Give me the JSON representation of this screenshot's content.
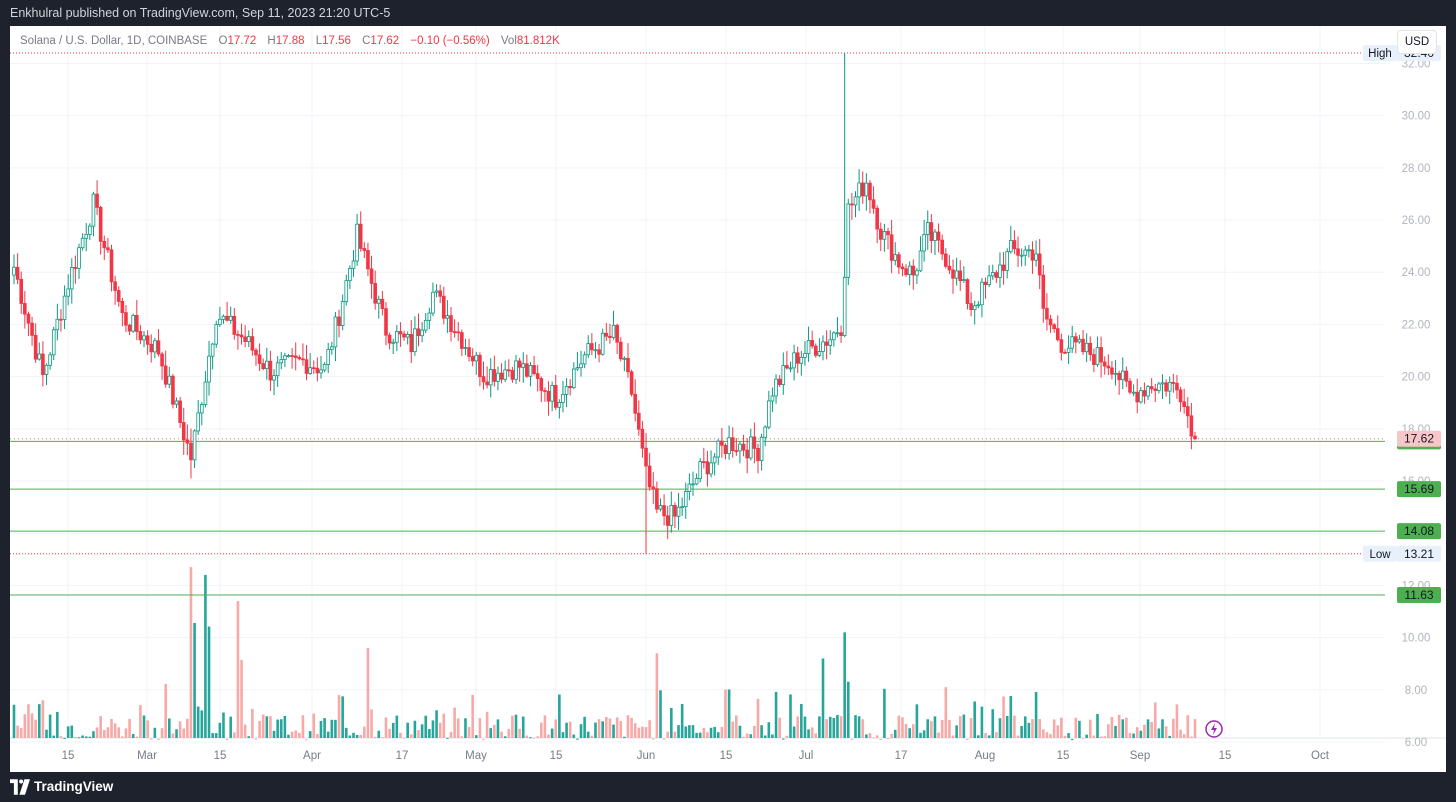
{
  "header": {
    "published_text": "Enkhulral published on TradingView.com, Sep 11, 2023 21:20 UTC-5"
  },
  "legend": {
    "symbol": "Solana / U.S. Dollar, 1D, COINBASE",
    "open_label": "O",
    "open": "17.72",
    "high_label": "H",
    "high": "17.88",
    "low_label": "L",
    "low": "17.56",
    "close_label": "C",
    "close": "17.62",
    "change": "−0.10 (−0.56%)",
    "vol_label": "Vol",
    "vol": "81.812K"
  },
  "currency_button": "USD",
  "footer": {
    "brand": "TradingView",
    "logo_icon": "tradingview-logo-icon"
  },
  "colors": {
    "up": "#089981",
    "down": "#f23645",
    "up_volume": "#26a69a",
    "down_volume": "#f7a9a7",
    "level": "#4caf50",
    "extreme": "#f23645"
  },
  "chart_data": {
    "type": "candlestick",
    "ylim": [
      5.5,
      32.9
    ],
    "y_ticks": [
      6,
      8,
      10,
      12,
      14,
      16,
      18,
      20,
      22,
      24,
      26,
      28,
      30,
      32
    ],
    "x_tick_labels": [
      "15",
      "Mar",
      "15",
      "Apr",
      "17",
      "May",
      "15",
      "Jun",
      "15",
      "Jul",
      "17",
      "Aug",
      "15",
      "Sep",
      "15",
      "Oct"
    ],
    "last_price": "17.62",
    "high_marker": {
      "label": "High",
      "value": "32.40"
    },
    "low_marker": {
      "label": "Low",
      "value": "13.21"
    },
    "horizontal_levels": [
      "17.52",
      "15.69",
      "14.08",
      "11.63"
    ],
    "anchors": [
      [
        0,
        24.2
      ],
      [
        8,
        20.0
      ],
      [
        15,
        23.6
      ],
      [
        22,
        26.6
      ],
      [
        30,
        22.3
      ],
      [
        40,
        21.0
      ],
      [
        49,
        16.9
      ],
      [
        56,
        22.4
      ],
      [
        64,
        21.4
      ],
      [
        71,
        20.2
      ],
      [
        80,
        20.6
      ],
      [
        86,
        20.3
      ],
      [
        90,
        22.4
      ],
      [
        95,
        25.4
      ],
      [
        103,
        21.8
      ],
      [
        110,
        21.2
      ],
      [
        116,
        23.2
      ],
      [
        123,
        21.7
      ],
      [
        130,
        20.1
      ],
      [
        140,
        20.4
      ],
      [
        150,
        19.2
      ],
      [
        158,
        20.8
      ],
      [
        166,
        21.6
      ],
      [
        171,
        19.4
      ],
      [
        175,
        16.2
      ],
      [
        178,
        14.8
      ],
      [
        183,
        14.6
      ],
      [
        190,
        16.4
      ],
      [
        198,
        17.5
      ],
      [
        206,
        17.2
      ],
      [
        210,
        19.5
      ],
      [
        217,
        20.8
      ],
      [
        226,
        21.5
      ],
      [
        229,
        22.0
      ],
      [
        231,
        26.4
      ],
      [
        236,
        27.5
      ],
      [
        240,
        25.6
      ],
      [
        245,
        24.4
      ],
      [
        249,
        23.9
      ],
      [
        253,
        25.5
      ],
      [
        258,
        24.6
      ],
      [
        262,
        23.6
      ],
      [
        265,
        22.7
      ],
      [
        270,
        23.6
      ],
      [
        276,
        24.8
      ],
      [
        283,
        24.8
      ],
      [
        285,
        22.4
      ],
      [
        290,
        21.3
      ],
      [
        298,
        20.9
      ],
      [
        304,
        20.5
      ],
      [
        309,
        19.3
      ],
      [
        315,
        19.7
      ],
      [
        320,
        19.7
      ],
      [
        324,
        19.3
      ],
      [
        326,
        17.72
      ],
      [
        327,
        17.62
      ]
    ],
    "volume_spikes": [
      [
        49,
        12.7
      ],
      [
        53,
        12.4
      ],
      [
        62,
        11.4
      ],
      [
        98,
        9.6
      ],
      [
        178,
        9.4
      ],
      [
        224,
        9.2
      ],
      [
        230,
        10.2
      ]
    ],
    "volume_base": 7.1
  }
}
